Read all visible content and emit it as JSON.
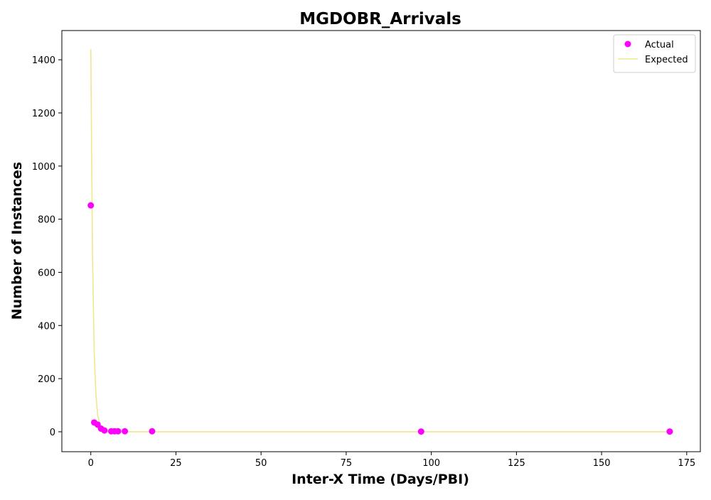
{
  "chart_data": {
    "type": "scatter",
    "title": "MGDOBR_Arrivals",
    "xlabel": "Inter-X Time (Days/PBI)",
    "ylabel": "Number of Instances",
    "xlim": [
      -8.5,
      179
    ],
    "ylim": [
      -75,
      1510
    ],
    "xticks": [
      0,
      25,
      50,
      75,
      100,
      125,
      150,
      175
    ],
    "yticks": [
      0,
      200,
      400,
      600,
      800,
      1000,
      1200,
      1400
    ],
    "grid": false,
    "legend_position": "top-right",
    "series": [
      {
        "name": "Actual",
        "kind": "scatter",
        "color": "#ff00ff",
        "x": [
          0,
          1,
          2,
          3,
          4,
          6,
          7,
          8,
          10,
          18,
          97,
          170
        ],
        "y": [
          852,
          35,
          27,
          12,
          5,
          2,
          2,
          2,
          2,
          2,
          1,
          1
        ]
      },
      {
        "name": "Expected",
        "kind": "line",
        "color": "#f0e68c",
        "x": [
          0,
          0.5,
          1,
          1.5,
          2,
          3,
          4,
          5,
          6,
          7,
          8,
          10,
          18,
          97,
          170
        ],
        "y": [
          1440,
          660,
          300,
          140,
          63,
          14,
          3,
          1,
          0,
          0,
          0,
          0,
          0,
          0,
          0
        ]
      }
    ]
  }
}
